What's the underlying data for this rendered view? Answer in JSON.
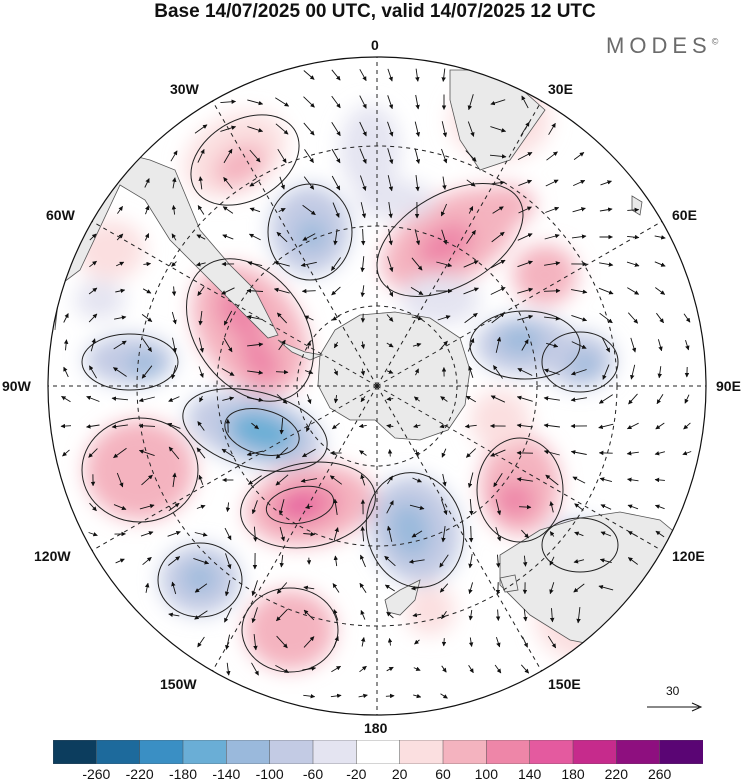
{
  "title": "Base 14/07/2025 00 UTC, valid 14/07/2025 12 UTC",
  "brand": "MODES",
  "brand_mark": "©",
  "map_labels": {
    "lon_0": "0",
    "lon_30e": "30E",
    "lon_60e": "60E",
    "lon_90e": "90E",
    "lon_120e": "120E",
    "lon_150e": "150E",
    "lon_180": "180",
    "lon_150w": "150W",
    "lon_120w": "120W",
    "lon_90w": "90W",
    "lon_60w": "60W",
    "lon_30w": "30W"
  },
  "reference_vector": "30",
  "colorbar": {
    "ticks": [
      "-260",
      "-220",
      "-180",
      "-140",
      "-100",
      "-60",
      "-20",
      "20",
      "60",
      "100",
      "140",
      "180",
      "220",
      "260"
    ],
    "colors": [
      "#0c3d5e",
      "#1d6a9c",
      "#3a8fc4",
      "#6aaed6",
      "#9ab9dc",
      "#c3cbe4",
      "#e4e4f1",
      "#ffffff",
      "#fbdfe0",
      "#f4b3bf",
      "#ee86a8",
      "#e45a9f",
      "#c62b8c",
      "#8e0f7f",
      "#5a0574"
    ]
  },
  "colors": {
    "land": "#eaeaea",
    "coast": "#555555",
    "vector": "#111111"
  }
}
